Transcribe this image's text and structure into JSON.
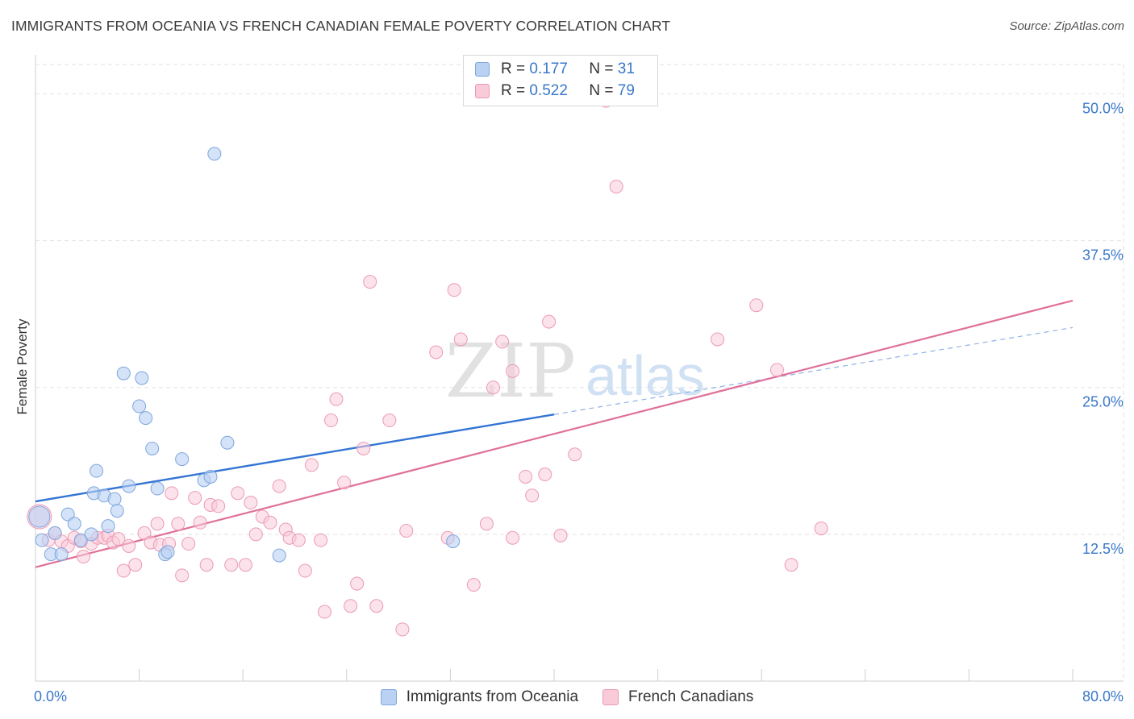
{
  "title": "IMMIGRANTS FROM OCEANIA VS FRENCH CANADIAN FEMALE POVERTY CORRELATION CHART",
  "source": "Source: ZipAtlas.com",
  "watermark": {
    "zip": "ZIP",
    "atlas": "atlas"
  },
  "legend": {
    "rows": [
      {
        "r_label": "R =",
        "r_value": "0.177",
        "n_label": "N =",
        "n_value": "31"
      },
      {
        "r_label": "R =",
        "r_value": "0.522",
        "n_label": "N =",
        "n_value": "79"
      }
    ],
    "bottom": [
      {
        "label": "Immigrants from Oceania"
      },
      {
        "label": "French Canadians"
      }
    ]
  },
  "colors": {
    "blue_fill": "#b9d1f3",
    "blue_stroke": "#7ea6de",
    "blue_line": "#3374d4",
    "pink_fill": "#f9cad8",
    "pink_stroke": "#eb9bb3",
    "pink_line": "#e0709a",
    "axis_text": "#3a78c9"
  },
  "chart_data": {
    "type": "scatter",
    "title": "IMMIGRANTS FROM OCEANIA VS FRENCH CANADIAN FEMALE POVERTY CORRELATION CHART",
    "xlabel": "",
    "ylabel": "Female Poverty",
    "xlim": [
      0,
      80
    ],
    "ylim": [
      0,
      52.5
    ],
    "x_tick_labels": [
      "0.0%",
      "80.0%"
    ],
    "y_ticks": [
      12.5,
      25.0,
      37.5,
      50.0
    ],
    "y_tick_labels": [
      "12.5%",
      "25.0%",
      "37.5%",
      "50.0%"
    ],
    "grid": true,
    "series": [
      {
        "name": "Immigrants from Oceania",
        "color": "blue",
        "r": 0.177,
        "n": 31,
        "trend": {
          "x0": 0,
          "y0": 15.3,
          "x1": 40,
          "y1": 22.7,
          "dashed_to_x": 80,
          "dashed_to_y": 30.1
        },
        "points": [
          [
            0.3,
            14.0
          ],
          [
            0.5,
            12.0
          ],
          [
            1.2,
            10.8
          ],
          [
            1.5,
            12.6
          ],
          [
            2.0,
            10.8
          ],
          [
            2.5,
            14.2
          ],
          [
            3.0,
            13.4
          ],
          [
            3.5,
            12.0
          ],
          [
            4.5,
            16.0
          ],
          [
            4.3,
            12.5
          ],
          [
            4.7,
            17.9
          ],
          [
            5.3,
            15.8
          ],
          [
            5.6,
            13.2
          ],
          [
            6.1,
            15.5
          ],
          [
            6.3,
            14.5
          ],
          [
            6.8,
            26.2
          ],
          [
            7.2,
            16.6
          ],
          [
            8.0,
            23.4
          ],
          [
            8.2,
            25.8
          ],
          [
            8.5,
            22.4
          ],
          [
            9.0,
            19.8
          ],
          [
            9.4,
            16.4
          ],
          [
            10.0,
            10.8
          ],
          [
            10.2,
            11.0
          ],
          [
            11.3,
            18.9
          ],
          [
            13.0,
            17.1
          ],
          [
            13.5,
            17.4
          ],
          [
            13.8,
            44.9
          ],
          [
            14.8,
            20.3
          ],
          [
            18.8,
            10.7
          ],
          [
            32.2,
            11.9
          ]
        ]
      },
      {
        "name": "French Canadians",
        "color": "pink",
        "r": 0.522,
        "n": 79,
        "trend": {
          "x0": 0,
          "y0": 9.7,
          "x1": 80,
          "y1": 32.4
        },
        "points": [
          [
            0.3,
            14.0
          ],
          [
            1.0,
            12.0
          ],
          [
            1.5,
            12.6
          ],
          [
            2.0,
            11.9
          ],
          [
            2.5,
            11.5
          ],
          [
            3.0,
            12.2
          ],
          [
            3.5,
            11.9
          ],
          [
            3.7,
            10.6
          ],
          [
            4.3,
            11.7
          ],
          [
            4.8,
            12.2
          ],
          [
            5.3,
            12.2
          ],
          [
            5.6,
            12.4
          ],
          [
            6.0,
            11.8
          ],
          [
            6.4,
            12.1
          ],
          [
            6.8,
            9.4
          ],
          [
            7.2,
            11.5
          ],
          [
            7.7,
            9.9
          ],
          [
            8.4,
            12.6
          ],
          [
            8.9,
            11.8
          ],
          [
            9.4,
            13.4
          ],
          [
            9.6,
            11.6
          ],
          [
            10.3,
            11.7
          ],
          [
            10.5,
            16.0
          ],
          [
            11.0,
            13.4
          ],
          [
            11.3,
            9.0
          ],
          [
            11.8,
            11.7
          ],
          [
            12.3,
            15.6
          ],
          [
            12.7,
            13.5
          ],
          [
            13.2,
            9.9
          ],
          [
            13.5,
            15.0
          ],
          [
            14.1,
            14.9
          ],
          [
            15.1,
            9.9
          ],
          [
            15.6,
            16.0
          ],
          [
            16.2,
            9.9
          ],
          [
            16.6,
            15.2
          ],
          [
            17.0,
            12.5
          ],
          [
            17.5,
            14.0
          ],
          [
            18.1,
            13.5
          ],
          [
            18.8,
            16.6
          ],
          [
            19.3,
            12.9
          ],
          [
            19.6,
            12.2
          ],
          [
            20.3,
            12.0
          ],
          [
            20.8,
            9.4
          ],
          [
            21.3,
            18.4
          ],
          [
            22.0,
            12.0
          ],
          [
            22.3,
            5.9
          ],
          [
            22.8,
            22.2
          ],
          [
            23.2,
            24.0
          ],
          [
            23.8,
            16.9
          ],
          [
            24.3,
            6.4
          ],
          [
            24.8,
            8.3
          ],
          [
            25.3,
            19.8
          ],
          [
            25.8,
            34.0
          ],
          [
            26.3,
            6.4
          ],
          [
            27.3,
            22.2
          ],
          [
            28.3,
            4.4
          ],
          [
            28.6,
            12.8
          ],
          [
            30.9,
            28.0
          ],
          [
            31.8,
            12.2
          ],
          [
            32.3,
            33.3
          ],
          [
            32.8,
            29.1
          ],
          [
            33.8,
            8.2
          ],
          [
            34.8,
            13.4
          ],
          [
            35.3,
            25.0
          ],
          [
            36.0,
            28.9
          ],
          [
            36.8,
            12.2
          ],
          [
            36.8,
            26.4
          ],
          [
            37.8,
            17.4
          ],
          [
            38.3,
            15.8
          ],
          [
            39.3,
            17.6
          ],
          [
            39.6,
            30.6
          ],
          [
            40.5,
            12.4
          ],
          [
            41.6,
            19.3
          ],
          [
            44.0,
            49.4
          ],
          [
            44.8,
            42.1
          ],
          [
            52.6,
            29.1
          ],
          [
            55.6,
            32.0
          ],
          [
            57.2,
            26.5
          ],
          [
            58.3,
            9.9
          ],
          [
            60.6,
            13.0
          ]
        ]
      }
    ]
  }
}
